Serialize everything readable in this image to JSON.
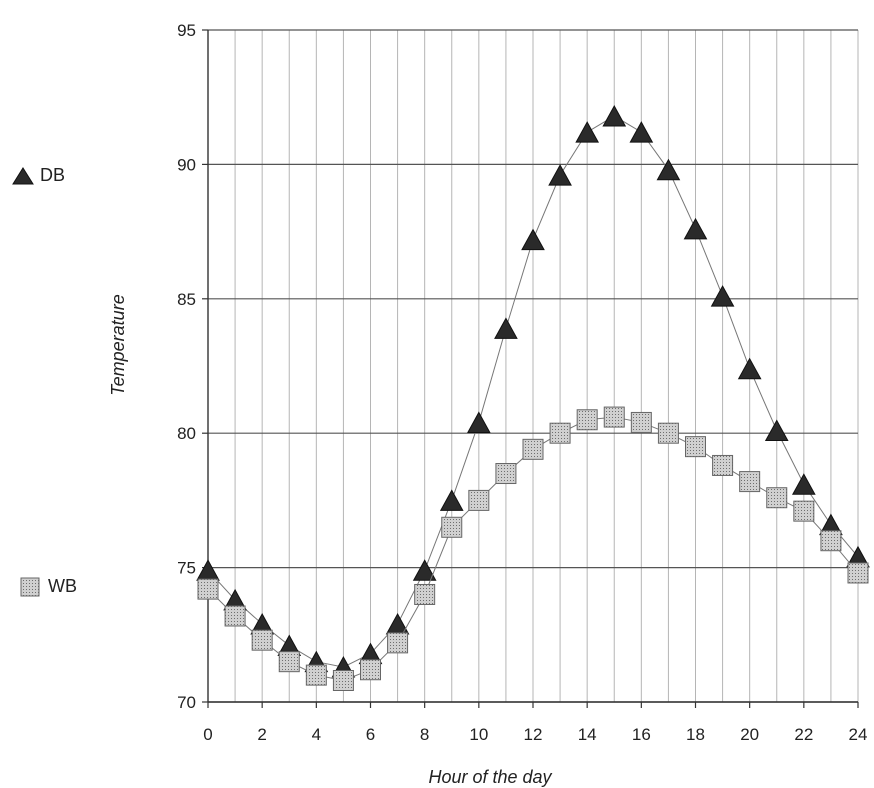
{
  "chart_data": {
    "type": "line",
    "title": "",
    "xlabel": "Hour of the day",
    "ylabel": "Temperature",
    "xlim": [
      0,
      24
    ],
    "ylim": [
      70,
      95
    ],
    "xticks": [
      "0",
      "2",
      "4",
      "6",
      "8",
      "10",
      "12",
      "14",
      "16",
      "18",
      "20",
      "22",
      "24"
    ],
    "yticks": [
      "70",
      "75",
      "80",
      "85",
      "90",
      "95"
    ],
    "grid": true,
    "legend_position": "left",
    "x": [
      0,
      1,
      2,
      3,
      4,
      5,
      6,
      7,
      8,
      9,
      10,
      11,
      12,
      13,
      14,
      15,
      16,
      17,
      18,
      19,
      20,
      21,
      22,
      23,
      24
    ],
    "series": [
      {
        "name": "DB",
        "marker": "triangle",
        "color": "#2a2a2a",
        "values": [
          74.9,
          73.8,
          72.9,
          72.1,
          71.5,
          71.3,
          71.8,
          72.9,
          74.9,
          77.5,
          80.4,
          83.9,
          87.2,
          89.6,
          91.2,
          91.8,
          91.2,
          89.8,
          87.6,
          85.1,
          82.4,
          80.1,
          78.1,
          76.6,
          75.4
        ]
      },
      {
        "name": "WB",
        "marker": "square",
        "color": "#c8c8c8",
        "values": [
          74.2,
          73.2,
          72.3,
          71.5,
          71.0,
          70.8,
          71.2,
          72.2,
          74.0,
          76.5,
          77.5,
          78.5,
          79.4,
          80.0,
          80.5,
          80.6,
          80.4,
          80.0,
          79.5,
          78.8,
          78.2,
          77.6,
          77.1,
          76.0,
          74.8
        ]
      }
    ]
  }
}
